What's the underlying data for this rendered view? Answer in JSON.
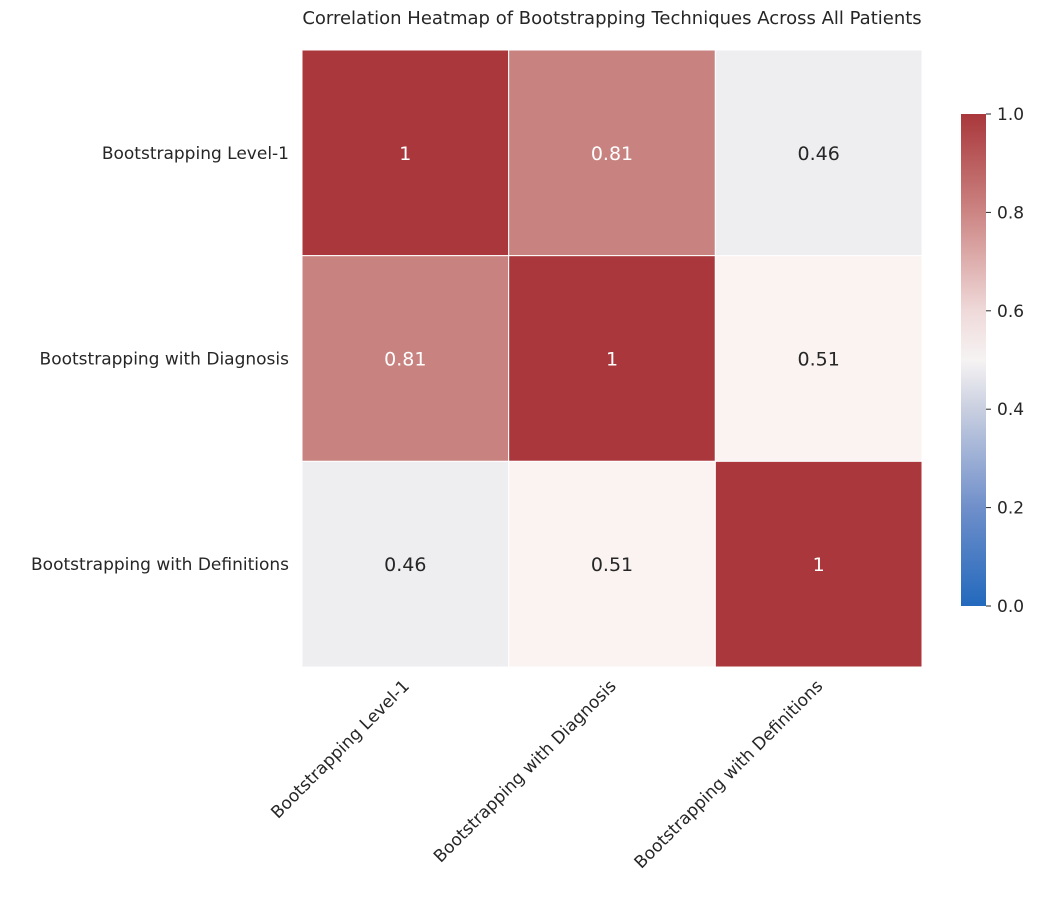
{
  "chart_data": {
    "type": "heatmap",
    "title": "Correlation Heatmap of Bootstrapping Techniques Across All Patients",
    "row_labels": [
      "Bootstrapping Level-1",
      "Bootstrapping with Diagnosis",
      "Bootstrapping with Definitions"
    ],
    "col_labels": [
      "Bootstrapping Level-1",
      "Bootstrapping with Diagnosis",
      "Bootstrapping with Definitions"
    ],
    "values": [
      [
        1,
        0.81,
        0.46
      ],
      [
        0.81,
        1,
        0.51
      ],
      [
        0.46,
        0.51,
        1
      ]
    ],
    "value_labels": [
      [
        "1",
        "0.81",
        "0.46"
      ],
      [
        "0.81",
        "1",
        "0.51"
      ],
      [
        "0.46",
        "0.51",
        "1"
      ]
    ],
    "colormap": "vlag",
    "vmin": 0,
    "vmax": 1,
    "colorbar_ticks": [
      "0.0",
      "0.2",
      "0.4",
      "0.6",
      "0.8",
      "1.0"
    ],
    "colorbar_stops": [
      {
        "v": 0.0,
        "color": "#2369bd"
      },
      {
        "v": 0.2,
        "color": "#6f8fca"
      },
      {
        "v": 0.4,
        "color": "#c9cfe0"
      },
      {
        "v": 0.5,
        "color": "#f6f3f3"
      },
      {
        "v": 0.6,
        "color": "#efd9d9"
      },
      {
        "v": 0.8,
        "color": "#cc8583"
      },
      {
        "v": 1.0,
        "color": "#a9373b"
      }
    ],
    "cell_colors": [
      [
        "#a9373b",
        "#c88280",
        "#eeeef1"
      ],
      [
        "#c88280",
        "#a9373b",
        "#faf3f2"
      ],
      [
        "#eeeef1",
        "#faf3f2",
        "#a9373b"
      ]
    ],
    "annotation_colors": [
      [
        "#ffffff",
        "#ffffff",
        "#262626"
      ],
      [
        "#ffffff",
        "#ffffff",
        "#262626"
      ],
      [
        "#262626",
        "#262626",
        "#ffffff"
      ]
    ],
    "grid_line_color": "#ffffff"
  }
}
